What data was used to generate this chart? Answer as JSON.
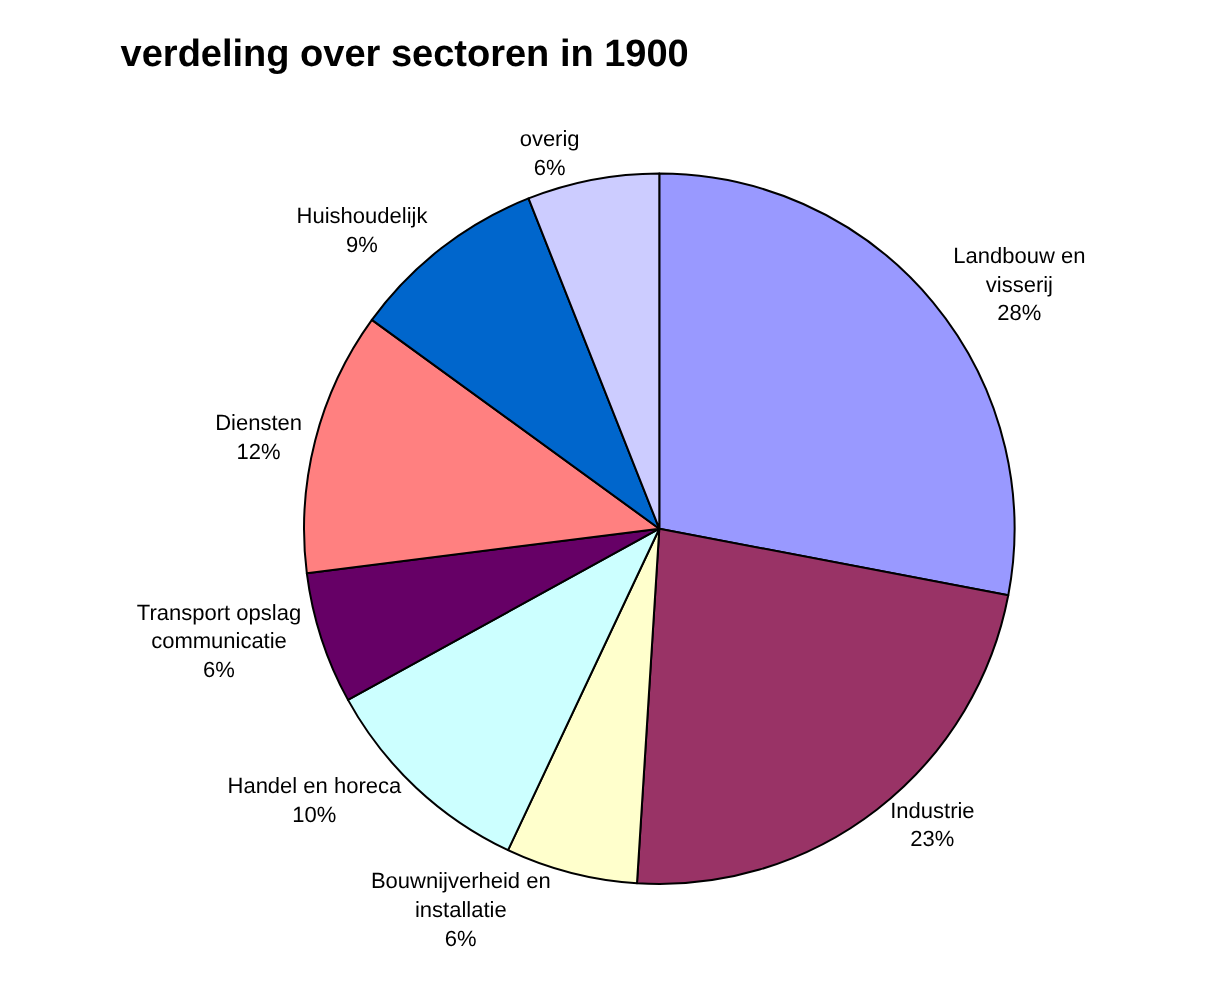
{
  "chart_data": {
    "type": "pie",
    "title": "verdeling over sectoren in 1900",
    "categories": [
      "Landbouw en visserij",
      "Industrie",
      "Bouwnijverheid en installatie",
      "Handel en horeca",
      "Transport opslag communicatie",
      "Diensten",
      "Huishoudelijk",
      "overig"
    ],
    "values": [
      28,
      23,
      6,
      10,
      6,
      12,
      9,
      6
    ],
    "value_labels": [
      "28%",
      "23%",
      "6%",
      "10%",
      "6%",
      "12%",
      "9%",
      "6%"
    ],
    "colors": [
      "#9999ff",
      "#993366",
      "#ffffcc",
      "#ccffff",
      "#660066",
      "#ff8080",
      "#0066cc",
      "#ccccff"
    ],
    "legend": false
  }
}
